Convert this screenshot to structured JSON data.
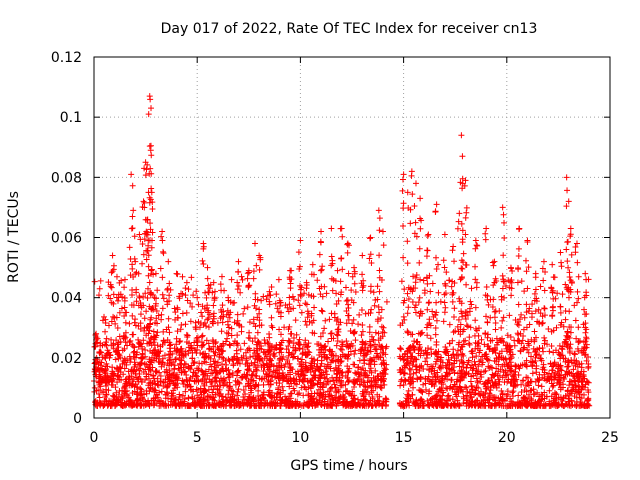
{
  "chart_data": {
    "type": "scatter",
    "title": "Day 017 of 2022, Rate Of TEC Index for receiver cn13",
    "xlabel": "GPS time / hours",
    "ylabel": "ROTI / TECUs",
    "xlim": [
      0,
      25
    ],
    "ylim": [
      0,
      0.12
    ],
    "x_ticks": [
      "0",
      "5",
      "10",
      "15",
      "20",
      "25"
    ],
    "y_ticks": [
      "0",
      "0.02",
      "0.04",
      "0.06",
      "0.08",
      "0.1",
      "0.12"
    ],
    "grid": true,
    "marker": "plus",
    "color": "#ff0000",
    "data_gap_hours": [
      14.2,
      14.8
    ],
    "series": [
      {
        "x": [
          0.1,
          0.3,
          0.6,
          0.9,
          1.2,
          1.5,
          1.8,
          1.9,
          2.0,
          2.2,
          2.4,
          2.5,
          2.6,
          2.65,
          2.7,
          2.75,
          2.8,
          3.0,
          3.3,
          3.6,
          4.0,
          4.5,
          5.0,
          5.3,
          5.5,
          5.8,
          6.2,
          6.5,
          7.0,
          7.5,
          7.8,
          8.0,
          8.5,
          9.0,
          9.5,
          10.0,
          10.3,
          10.6,
          11.0,
          11.5,
          11.8,
          12.0,
          12.3,
          12.6,
          13.0,
          13.4,
          13.8,
          14.0,
          15.0,
          15.2,
          15.4,
          15.6,
          15.8,
          16.2,
          16.6,
          17.0,
          17.4,
          17.7,
          17.8,
          17.85,
          18.0,
          18.5,
          19.0,
          19.4,
          19.8,
          20.2,
          20.6,
          21.0,
          21.4,
          21.8,
          22.2,
          22.6,
          22.9,
          23.0,
          23.1,
          23.4,
          23.8
        ],
        "y": [
          0.028,
          0.022,
          0.018,
          0.054,
          0.041,
          0.046,
          0.081,
          0.069,
          0.052,
          0.061,
          0.072,
          0.085,
          0.066,
          0.101,
          0.107,
          0.089,
          0.075,
          0.048,
          0.062,
          0.052,
          0.048,
          0.045,
          0.04,
          0.058,
          0.05,
          0.045,
          0.047,
          0.04,
          0.052,
          0.049,
          0.058,
          0.054,
          0.042,
          0.039,
          0.049,
          0.059,
          0.045,
          0.051,
          0.062,
          0.063,
          0.049,
          0.063,
          0.058,
          0.05,
          0.054,
          0.06,
          0.069,
          0.062,
          0.081,
          0.075,
          0.082,
          0.078,
          0.073,
          0.061,
          0.071,
          0.061,
          0.057,
          0.068,
          0.094,
          0.087,
          0.079,
          0.059,
          0.063,
          0.052,
          0.07,
          0.05,
          0.063,
          0.059,
          0.048,
          0.052,
          0.051,
          0.055,
          0.08,
          0.072,
          0.063,
          0.058,
          0.048
        ]
      }
    ]
  }
}
